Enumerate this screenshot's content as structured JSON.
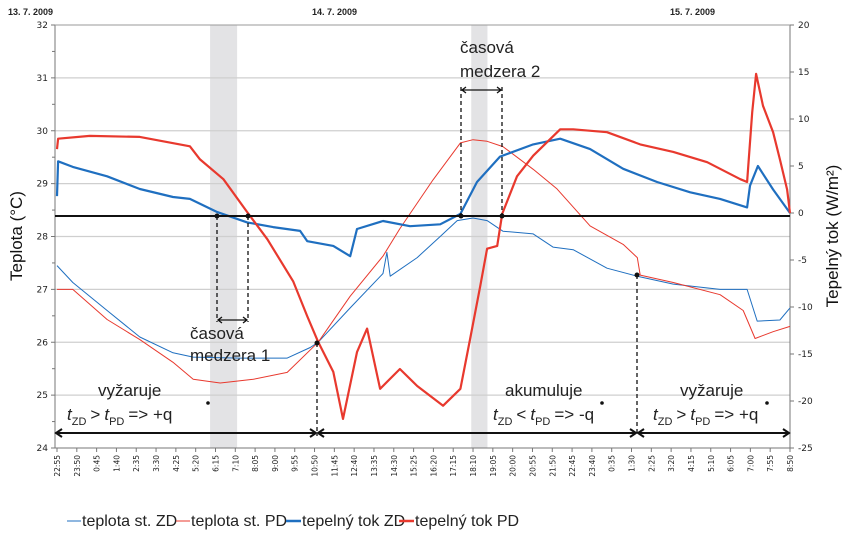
{
  "chart_data": {
    "type": "line",
    "title": "",
    "date_labels": [
      "13. 7. 2009",
      "14. 7. 2009",
      "15. 7. 2009"
    ],
    "xlabel": "",
    "x_range": [
      "2009-07-13 22:55",
      "2009-07-15 08:50"
    ],
    "x_tick_labels": [
      "22:55",
      "23:50",
      "0:45",
      "1:40",
      "2:35",
      "3:30",
      "4:25",
      "5:20",
      "6:15",
      "7:10",
      "8:05",
      "9:00",
      "9:55",
      "10:50",
      "11:45",
      "12:40",
      "13:35",
      "14:30",
      "15:25",
      "16:20",
      "17:15",
      "18:10",
      "19:05",
      "20:00",
      "20:55",
      "21:50",
      "22:45",
      "23:40",
      "0:35",
      "1:30",
      "2:25",
      "3:20",
      "4:15",
      "5:10",
      "6:05",
      "7:00",
      "7:55",
      "8:50"
    ],
    "ylabel_left": "Teplota (°C)",
    "ylim_left": [
      24,
      32
    ],
    "y_ticks_left": [
      "32",
      "31",
      "30",
      "29",
      "28",
      "27",
      "26",
      "25",
      "24"
    ],
    "ylabel_right": "Tepelný tok (W/m²)",
    "ylim_right": [
      -25,
      20
    ],
    "y_ticks_right": [
      "20",
      "15",
      "10",
      "5",
      "0",
      "-5",
      "-10",
      "-15",
      "-20",
      "-25"
    ],
    "grid": true,
    "legend_position": "bottom",
    "shaded_intervals": [
      [
        "2009-07-14 06:00",
        "2009-07-14 07:15"
      ],
      [
        "2009-07-14 18:05",
        "2009-07-14 18:50"
      ]
    ],
    "series": [
      {
        "name": "teplota st. ZD",
        "axis": "left",
        "color": "#1f6fc0",
        "width": 1,
        "points": [
          [
            "2009-07-13 22:55",
            27.45
          ],
          [
            "2009-07-13 23:39",
            27.13
          ],
          [
            "2009-07-14 01:14",
            26.6
          ],
          [
            "2009-07-14 02:45",
            26.1
          ],
          [
            "2009-07-14 04:17",
            25.8
          ],
          [
            "2009-07-14 05:13",
            25.72
          ],
          [
            "2009-07-14 07:24",
            25.7
          ],
          [
            "2009-07-14 09:34",
            25.7
          ],
          [
            "2009-07-14 10:38",
            25.9
          ],
          [
            "2009-07-14 11:00",
            26.0
          ],
          [
            "2009-07-14 12:29",
            26.65
          ],
          [
            "2009-07-14 14:00",
            27.3
          ],
          [
            "2009-07-14 14:11",
            27.7
          ],
          [
            "2009-07-14 14:20",
            27.25
          ],
          [
            "2009-07-14 15:35",
            27.6
          ],
          [
            "2009-07-14 16:39",
            28.0
          ],
          [
            "2009-07-14 17:26",
            28.3
          ],
          [
            "2009-07-14 18:10",
            28.35
          ],
          [
            "2009-07-14 18:49",
            28.3
          ],
          [
            "2009-07-14 19:33",
            28.1
          ],
          [
            "2009-07-14 20:57",
            28.05
          ],
          [
            "2009-07-14 21:52",
            27.8
          ],
          [
            "2009-07-14 22:48",
            27.75
          ],
          [
            "2009-07-15 00:22",
            27.4
          ],
          [
            "2009-07-15 01:46",
            27.25
          ],
          [
            "2009-07-15 03:26",
            27.1
          ],
          [
            "2009-07-15 05:36",
            27.0
          ],
          [
            "2009-07-15 06:51",
            27.0
          ],
          [
            "2009-07-15 07:19",
            26.4
          ],
          [
            "2009-07-15 08:22",
            26.42
          ],
          [
            "2009-07-15 08:50",
            26.65
          ]
        ]
      },
      {
        "name": "teplota st. PD",
        "axis": "left",
        "color": "#e8392e",
        "width": 1,
        "points": [
          [
            "2009-07-13 22:55",
            27.0
          ],
          [
            "2009-07-13 23:39",
            27.0
          ],
          [
            "2009-07-14 01:14",
            26.43
          ],
          [
            "2009-07-14 02:45",
            26.05
          ],
          [
            "2009-07-14 04:17",
            25.62
          ],
          [
            "2009-07-14 05:13",
            25.3
          ],
          [
            "2009-07-14 06:28",
            25.23
          ],
          [
            "2009-07-14 08:00",
            25.3
          ],
          [
            "2009-07-14 09:34",
            25.43
          ],
          [
            "2009-07-14 11:00",
            26.0
          ],
          [
            "2009-07-14 12:29",
            26.87
          ],
          [
            "2009-07-14 14:00",
            27.63
          ],
          [
            "2009-07-14 14:47",
            28.15
          ],
          [
            "2009-07-14 16:19",
            29.07
          ],
          [
            "2009-07-14 17:35",
            29.77
          ],
          [
            "2009-07-14 18:10",
            29.83
          ],
          [
            "2009-07-14 18:49",
            29.8
          ],
          [
            "2009-07-14 19:33",
            29.7
          ],
          [
            "2009-07-14 20:57",
            29.27
          ],
          [
            "2009-07-14 22:03",
            28.9
          ],
          [
            "2009-07-14 23:35",
            28.2
          ],
          [
            "2009-07-15 01:07",
            27.85
          ],
          [
            "2009-07-15 01:46",
            27.6
          ],
          [
            "2009-07-15 01:54",
            27.27
          ],
          [
            "2009-07-15 03:26",
            27.13
          ],
          [
            "2009-07-15 05:36",
            26.9
          ],
          [
            "2009-07-15 06:40",
            26.6
          ],
          [
            "2009-07-15 07:13",
            26.07
          ],
          [
            "2009-07-15 08:03",
            26.2
          ],
          [
            "2009-07-15 08:50",
            26.3
          ]
        ]
      },
      {
        "name": "tepelný tok ZD",
        "axis": "right",
        "color": "#1f6fc0",
        "width": 2.2,
        "points": [
          [
            "2009-07-13 22:55",
            1.8
          ],
          [
            "2009-07-13 22:58",
            5.5
          ],
          [
            "2009-07-13 23:39",
            4.9
          ],
          [
            "2009-07-14 01:14",
            3.9
          ],
          [
            "2009-07-14 02:45",
            2.55
          ],
          [
            "2009-07-14 04:17",
            1.7
          ],
          [
            "2009-07-14 05:04",
            1.5
          ],
          [
            "2009-07-14 06:20",
            0.1
          ],
          [
            "2009-07-14 07:43",
            -1.0
          ],
          [
            "2009-07-14 08:55",
            -1.5
          ],
          [
            "2009-07-14 10:10",
            -1.9
          ],
          [
            "2009-07-14 10:30",
            -3.0
          ],
          [
            "2009-07-14 11:42",
            -3.5
          ],
          [
            "2009-07-14 12:29",
            -4.6
          ],
          [
            "2009-07-14 12:48",
            -1.7
          ],
          [
            "2009-07-14 14:00",
            -0.85
          ],
          [
            "2009-07-14 15:15",
            -1.4
          ],
          [
            "2009-07-14 16:39",
            -1.2
          ],
          [
            "2009-07-14 17:35",
            -0.1
          ],
          [
            "2009-07-14 18:21",
            3.3
          ],
          [
            "2009-07-14 19:25",
            6.0
          ],
          [
            "2009-07-14 20:57",
            7.3
          ],
          [
            "2009-07-14 22:12",
            7.9
          ],
          [
            "2009-07-14 23:35",
            6.8
          ],
          [
            "2009-07-15 01:07",
            4.7
          ],
          [
            "2009-07-15 02:41",
            3.3
          ],
          [
            "2009-07-15 04:13",
            2.2
          ],
          [
            "2009-07-15 05:36",
            1.5
          ],
          [
            "2009-07-15 06:51",
            0.6
          ],
          [
            "2009-07-15 06:59",
            2.9
          ],
          [
            "2009-07-15 07:21",
            5.0
          ],
          [
            "2009-07-15 08:03",
            2.5
          ],
          [
            "2009-07-15 08:50",
            0
          ]
        ]
      },
      {
        "name": "tepelný tok PD",
        "axis": "right",
        "color": "#e8392e",
        "width": 2.2,
        "points": [
          [
            "2009-07-13 22:55",
            6.8
          ],
          [
            "2009-07-13 22:58",
            7.9
          ],
          [
            "2009-07-14 00:26",
            8.2
          ],
          [
            "2009-07-14 02:45",
            8.1
          ],
          [
            "2009-07-14 05:04",
            7.1
          ],
          [
            "2009-07-14 05:32",
            5.7
          ],
          [
            "2009-07-14 06:37",
            3.6
          ],
          [
            "2009-07-14 07:43",
            0.1
          ],
          [
            "2009-07-14 08:39",
            -2.8
          ],
          [
            "2009-07-14 09:51",
            -7.3
          ],
          [
            "2009-07-14 10:30",
            -11.0
          ],
          [
            "2009-07-14 11:00",
            -13.7
          ],
          [
            "2009-07-14 11:42",
            -16.9
          ],
          [
            "2009-07-14 12:09",
            -21.9
          ],
          [
            "2009-07-14 12:48",
            -14.8
          ],
          [
            "2009-07-14 13:16",
            -12.3
          ],
          [
            "2009-07-14 13:52",
            -18.7
          ],
          [
            "2009-07-14 14:47",
            -16.6
          ],
          [
            "2009-07-14 15:35",
            -18.4
          ],
          [
            "2009-07-14 16:47",
            -20.5
          ],
          [
            "2009-07-14 17:35",
            -18.7
          ],
          [
            "2009-07-14 18:02",
            -13.4
          ],
          [
            "2009-07-14 18:30",
            -7.8
          ],
          [
            "2009-07-14 18:49",
            -3.8
          ],
          [
            "2009-07-14 19:17",
            -3.5
          ],
          [
            "2009-07-14 19:31",
            -0.1
          ],
          [
            "2009-07-14 20:12",
            3.9
          ],
          [
            "2009-07-14 20:57",
            6.1
          ],
          [
            "2009-07-14 22:12",
            8.9
          ],
          [
            "2009-07-14 22:48",
            8.9
          ],
          [
            "2009-07-15 00:22",
            8.6
          ],
          [
            "2009-07-15 01:54",
            7.3
          ],
          [
            "2009-07-15 03:26",
            6.5
          ],
          [
            "2009-07-15 05:00",
            5.4
          ],
          [
            "2009-07-15 06:32",
            3.6
          ],
          [
            "2009-07-15 06:51",
            3.3
          ],
          [
            "2009-07-15 07:05",
            10.7
          ],
          [
            "2009-07-15 07:16",
            14.8
          ],
          [
            "2009-07-15 07:35",
            11.4
          ],
          [
            "2009-07-15 08:03",
            8.6
          ],
          [
            "2009-07-15 08:22",
            5.7
          ],
          [
            "2009-07-15 08:42",
            2.5
          ],
          [
            "2009-07-15 08:50",
            0
          ]
        ]
      }
    ],
    "annotations": {
      "gap1": [
        "časová",
        "medzera 1"
      ],
      "gap2": [
        "časová",
        "medzera 2"
      ],
      "phase1": {
        "label": "vyžaruje",
        "formula": {
          "a": "t",
          "a_sub": "ZD",
          "op": ">",
          "b": "t",
          "b_sub": "PD",
          "result": "=> +q"
        }
      },
      "phase2": {
        "label": "akumuluje",
        "formula": {
          "a": "t",
          "a_sub": "ZD",
          "op": "<",
          "b": "t",
          "b_sub": "PD",
          "result": "=> -q"
        }
      },
      "phase3": {
        "label": "vyžaruje",
        "formula": {
          "a": "t",
          "a_sub": "ZD",
          "op": ">",
          "b": "t",
          "b_sub": "PD",
          "result": "=> +q"
        }
      }
    }
  }
}
